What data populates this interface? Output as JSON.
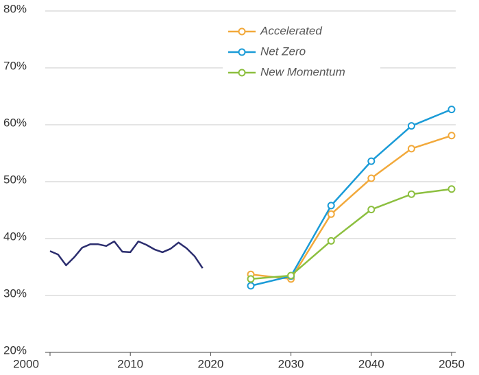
{
  "chart_data": {
    "type": "line",
    "xlim": [
      2000,
      2050
    ],
    "xticks": [
      2000,
      2010,
      2020,
      2030,
      2040,
      2050
    ],
    "ylim": [
      20,
      80
    ],
    "yticks": [
      {
        "value": 20,
        "label": "20%"
      },
      {
        "value": 30,
        "label": "30%"
      },
      {
        "value": 40,
        "label": "40%"
      },
      {
        "value": 50,
        "label": "50%"
      },
      {
        "value": 60,
        "label": "60%"
      },
      {
        "value": 70,
        "label": "70%"
      },
      {
        "value": 80,
        "label": "80%"
      }
    ],
    "grid": true,
    "legend": "top-center",
    "series": [
      {
        "color": "#2b2d6e",
        "markers": false,
        "x": [
          2000,
          2001,
          2002,
          2003,
          2004,
          2005,
          2006,
          2007,
          2008,
          2009,
          2010,
          2011,
          2012,
          2013,
          2014,
          2015,
          2016,
          2017,
          2018,
          2019
        ],
        "values": [
          37.8,
          37.2,
          35.3,
          36.7,
          38.4,
          39.0,
          39.0,
          38.7,
          39.5,
          37.7,
          37.6,
          39.5,
          38.9,
          38.1,
          37.6,
          38.2,
          39.3,
          38.3,
          36.9,
          34.8
        ]
      },
      {
        "name": "Accelerated",
        "color": "#f2a93b",
        "markers": true,
        "x": [
          2025,
          2030,
          2035,
          2040,
          2045,
          2050
        ],
        "values": [
          33.7,
          32.9,
          44.3,
          50.6,
          55.8,
          58.1
        ]
      },
      {
        "name": "Net Zero",
        "color": "#1a9bd7",
        "markers": true,
        "x": [
          2025,
          2030,
          2035,
          2040,
          2045,
          2050
        ],
        "values": [
          31.7,
          33.4,
          45.8,
          53.6,
          59.8,
          62.7
        ]
      },
      {
        "name": "New Momentum",
        "color": "#8cbf3f",
        "markers": true,
        "x": [
          2025,
          2030,
          2035,
          2040,
          2045,
          2050
        ],
        "values": [
          32.9,
          33.5,
          39.6,
          45.1,
          47.8,
          48.7
        ]
      }
    ]
  }
}
